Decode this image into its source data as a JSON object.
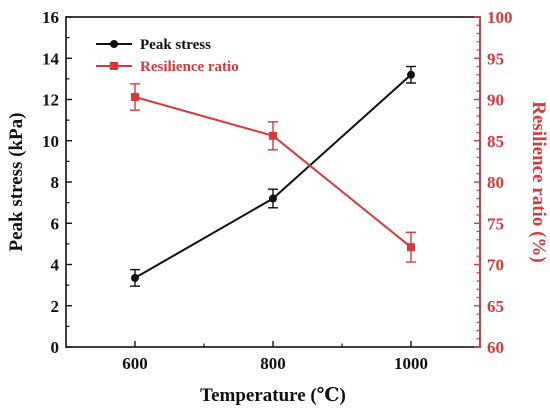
{
  "chart_data": {
    "type": "line",
    "x": [
      600,
      800,
      1000
    ],
    "xlabel": "Temperature (℃)",
    "xticks": [
      "600",
      "800",
      "1000"
    ],
    "xlim": [
      500,
      1100
    ],
    "left_axis": {
      "label": "Peak stress (kPa)",
      "ylim": [
        0,
        16
      ],
      "ticks": [
        "0",
        "2",
        "4",
        "6",
        "8",
        "10",
        "12",
        "14",
        "16"
      ],
      "color": "#111111"
    },
    "right_axis": {
      "label": "Resilience ratio (%)",
      "ylim": [
        60,
        100
      ],
      "ticks": [
        "60",
        "65",
        "70",
        "75",
        "80",
        "85",
        "90",
        "95",
        "100"
      ],
      "color": "#d9383a"
    },
    "series": [
      {
        "name": "Peak stress",
        "axis": "left",
        "color": "#111111",
        "marker": "circle",
        "values": [
          3.35,
          7.2,
          13.2
        ],
        "errors": [
          0.4,
          0.45,
          0.4
        ]
      },
      {
        "name": "Resilience ratio",
        "axis": "right",
        "color": "#d9383a",
        "marker": "square",
        "values": [
          90.3,
          85.6,
          72.1
        ],
        "errors": [
          1.6,
          1.7,
          1.8
        ]
      }
    ],
    "legend_position": "top-left",
    "grid": false
  }
}
